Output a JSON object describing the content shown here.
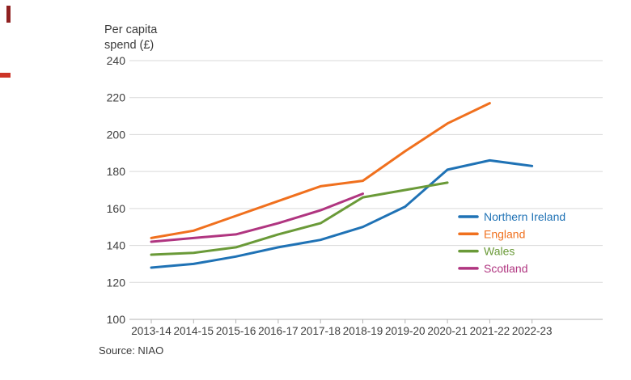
{
  "page": {
    "title_line1": "Per capita",
    "title_line2": "spend (£)",
    "source": "Source: NIAO"
  },
  "chart_data": {
    "type": "line",
    "title": "Per capita spend (£)",
    "ylabel": "Per capita spend (£)",
    "xlabel": "",
    "ylim": [
      100,
      240
    ],
    "yticks": [
      100,
      120,
      140,
      160,
      180,
      200,
      220,
      240
    ],
    "grid": true,
    "legend_position": "right-middle",
    "source": "Source: NIAO",
    "categories": [
      "2013-14",
      "2014-15",
      "2015-16",
      "2016-17",
      "2017-18",
      "2018-19",
      "2019-20",
      "2020-21",
      "2021-22",
      "2022-23"
    ],
    "series": [
      {
        "name": "Northern Ireland",
        "color": "#1f72b5",
        "values": [
          128,
          130,
          134,
          139,
          143,
          150,
          161,
          181,
          186,
          183
        ]
      },
      {
        "name": "England",
        "color": "#f0701e",
        "values": [
          144,
          148,
          156,
          164,
          172,
          175,
          191,
          206,
          217,
          null
        ]
      },
      {
        "name": "Wales",
        "color": "#6a9a38",
        "values": [
          135,
          136,
          139,
          146,
          152,
          166,
          170,
          174,
          null,
          null
        ]
      },
      {
        "name": "Scotland",
        "color": "#b03580",
        "values": [
          142,
          144,
          146,
          152,
          159,
          168,
          null,
          null,
          null,
          null
        ]
      }
    ],
    "style": {
      "grid_color": "#d9d9d9",
      "axis_color": "#b3b3b3",
      "text_color": "#3c3c3c",
      "line_width": 3
    }
  }
}
